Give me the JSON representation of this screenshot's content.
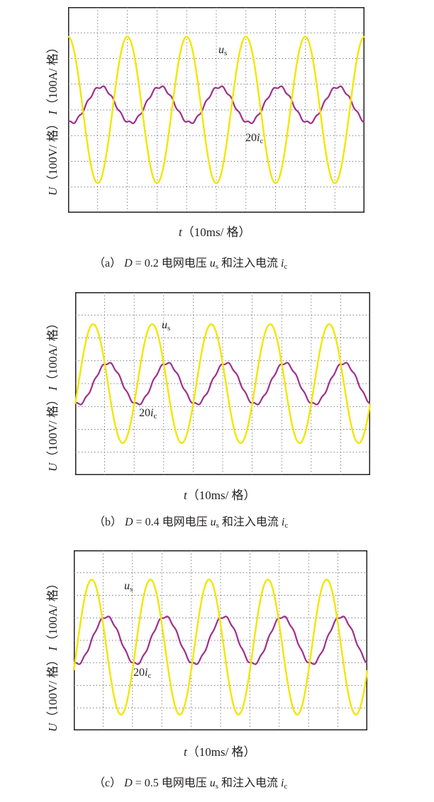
{
  "chart_data": [
    {
      "type": "line",
      "panel_id": "a",
      "ylabel_U": "U",
      "ylabel_text": "（100V/ 格） ",
      "ylabel_I": "I",
      "ylabel_text2": "（100A/ 格）",
      "xlabel_t": "t",
      "xlabel_text": "（10ms/ 格）",
      "caption_prefix": "（a） ",
      "caption_D": "D",
      "caption_value": " = 0.2 电网电压 ",
      "caption_u": "u",
      "caption_u_sub": "s",
      "caption_mid": " 和注入电流 ",
      "caption_i": "i",
      "caption_i_sub": "c",
      "grid": true,
      "x_divisions": 10,
      "y_divisions": 8,
      "series": [
        {
          "name": "u_s",
          "label_main": "u",
          "label_sub": "s",
          "color": "#f2e600",
          "amplitude_div": 2.85,
          "cycles": 5,
          "phase_deg": 90,
          "offset_div": 0
        },
        {
          "name": "20i_c",
          "label_main": "20i",
          "label_sub": "c",
          "color": "#9e2f8c",
          "amplitude_div": 0.7,
          "cycles": 5,
          "phase_deg": -110,
          "offset_div": 0.2
        }
      ]
    },
    {
      "type": "line",
      "panel_id": "b",
      "ylabel_U": "U",
      "ylabel_text": "（100V/ 格） ",
      "ylabel_I": "I",
      "ylabel_text2": "（100A/ 格）",
      "xlabel_t": "t",
      "xlabel_text": "（10ms/ 格）",
      "caption_prefix": "（b） ",
      "caption_D": "D",
      "caption_value": " = 0.4 电网电压 ",
      "caption_u": "u",
      "caption_u_sub": "s",
      "caption_mid": " 和注入电流 ",
      "caption_i": "i",
      "caption_i_sub": "c",
      "grid": true,
      "x_divisions": 10,
      "y_divisions": 8,
      "series": [
        {
          "name": "u_s",
          "label_main": "u",
          "label_sub": "s",
          "color": "#f2e600",
          "amplitude_div": 2.6,
          "cycles": 5,
          "phase_deg": -20,
          "offset_div": 0
        },
        {
          "name": "20i_c",
          "label_main": "20i",
          "label_sub": "c",
          "color": "#9e2f8c",
          "amplitude_div": 0.9,
          "cycles": 5,
          "phase_deg": -110,
          "offset_div": 0
        }
      ]
    },
    {
      "type": "line",
      "panel_id": "c",
      "ylabel_U": "U",
      "ylabel_text": "（100V/ 格） ",
      "ylabel_I": "I",
      "ylabel_text2": "（100A/ 格）",
      "xlabel_t": "t",
      "xlabel_text": "（10ms/ 格）",
      "caption_prefix": "（c） ",
      "caption_D": "D",
      "caption_value": " = 0.5 电网电压 ",
      "caption_u": "u",
      "caption_u_sub": "s",
      "caption_mid": " 和注入电流 ",
      "caption_i": "i",
      "caption_i_sub": "c",
      "grid": true,
      "x_divisions": 10,
      "y_divisions": 8,
      "series": [
        {
          "name": "u_s",
          "label_main": "u",
          "label_sub": "s",
          "color": "#f2e600",
          "amplitude_div": 3.0,
          "cycles": 5,
          "phase_deg": -20,
          "offset_div": -0.3
        },
        {
          "name": "20i_c",
          "label_main": "20i",
          "label_sub": "c",
          "color": "#9e2f8c",
          "amplitude_div": 1.05,
          "cycles": 5,
          "phase_deg": -110,
          "offset_div": 0
        }
      ]
    }
  ]
}
